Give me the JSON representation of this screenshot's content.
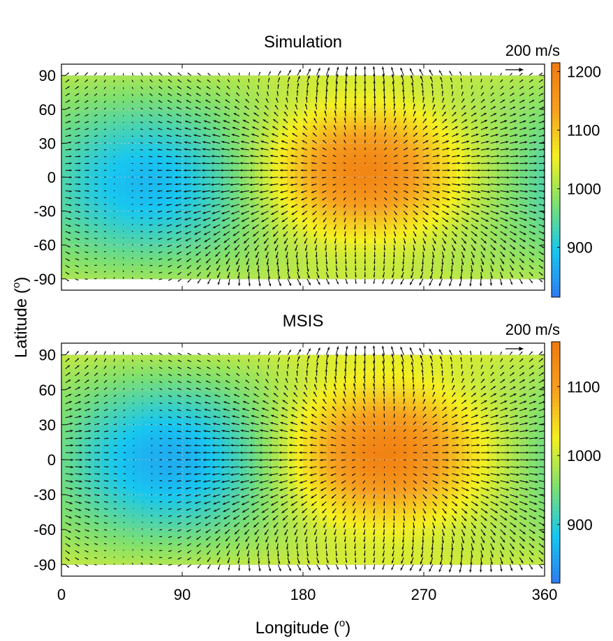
{
  "chart_data": [
    {
      "type": "heatmap",
      "subtype": "quiver",
      "title": "Simulation",
      "xlabel": "Longitude (o)",
      "ylabel": "Latitude (o)",
      "xlim": [
        0,
        360
      ],
      "ylim": [
        -100,
        100
      ],
      "x_ticks": [
        "0",
        "90",
        "180",
        "270",
        "360"
      ],
      "y_ticks": [
        "90",
        "60",
        "30",
        "0",
        "-30",
        "-60",
        "-90"
      ],
      "grid": true,
      "reference_vector": {
        "label": "200 m/s",
        "magnitude": 200
      },
      "colorbar": {
        "range": [
          815,
          1215
        ],
        "ticks": [
          "900",
          "1000",
          "1100",
          "1200"
        ],
        "tick_values": [
          900,
          1000,
          1100,
          1200
        ],
        "colormap": [
          "#2e7bf0",
          "#17c7f0",
          "#7ee070",
          "#f5f020",
          "#f6a020",
          "#f07a10"
        ]
      },
      "features": {
        "cold_center": {
          "lon": 65,
          "lat": -5,
          "value": 880
        },
        "warm_center": {
          "lon": 225,
          "lat": 5,
          "value": 1190
        },
        "background_value": 990
      }
    },
    {
      "type": "heatmap",
      "subtype": "quiver",
      "title": "MSIS",
      "xlabel": "Longitude (o)",
      "ylabel": "Latitude (o)",
      "xlim": [
        0,
        360
      ],
      "ylim": [
        -100,
        100
      ],
      "x_ticks": [
        "0",
        "90",
        "180",
        "270",
        "360"
      ],
      "y_ticks": [
        "90",
        "60",
        "30",
        "0",
        "-30",
        "-60",
        "-90"
      ],
      "grid": true,
      "reference_vector": {
        "label": "200 m/s",
        "magnitude": 200
      },
      "colorbar": {
        "range": [
          815,
          1165
        ],
        "ticks": [
          "900",
          "1000",
          "1100"
        ],
        "tick_values": [
          900,
          1000,
          1100
        ],
        "colormap": [
          "#2e7bf0",
          "#17c7f0",
          "#7ee070",
          "#f5f020",
          "#f6a020",
          "#f07a10"
        ]
      },
      "features": {
        "cold_center": {
          "lon": 80,
          "lat": 0,
          "value": 860
        },
        "warm_center": {
          "lon": 240,
          "lat": 5,
          "value": 1150
        },
        "background_value": 975
      }
    }
  ],
  "figure": {
    "ylabel_main": "Latitude (",
    "ylabel_sup": "o",
    "ylabel_close": ")",
    "xlabel_main": "Longitude (",
    "xlabel_sup": "o",
    "xlabel_close": ")"
  }
}
